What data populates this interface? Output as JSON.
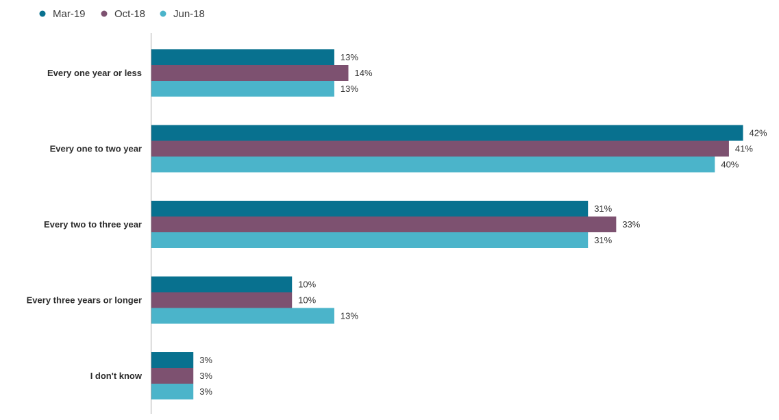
{
  "chart_data": {
    "type": "bar",
    "orientation": "horizontal",
    "title": "",
    "xlabel": "",
    "ylabel": "",
    "xlim": [
      0,
      42
    ],
    "grid": false,
    "legend_position": "top-left",
    "value_suffix": "%",
    "categories": [
      "Every one year or less",
      "Every one to two year",
      "Every two to three year",
      "Every three years or longer",
      "I don't know"
    ],
    "series": [
      {
        "name": "Mar-19",
        "color": "#08718f",
        "values": [
          13,
          42,
          31,
          10,
          3
        ]
      },
      {
        "name": "Oct-18",
        "color": "#7d5170",
        "values": [
          14,
          41,
          33,
          10,
          3
        ]
      },
      {
        "name": "Jun-18",
        "color": "#4bb4ca",
        "values": [
          13,
          40,
          31,
          13,
          3
        ]
      }
    ]
  }
}
